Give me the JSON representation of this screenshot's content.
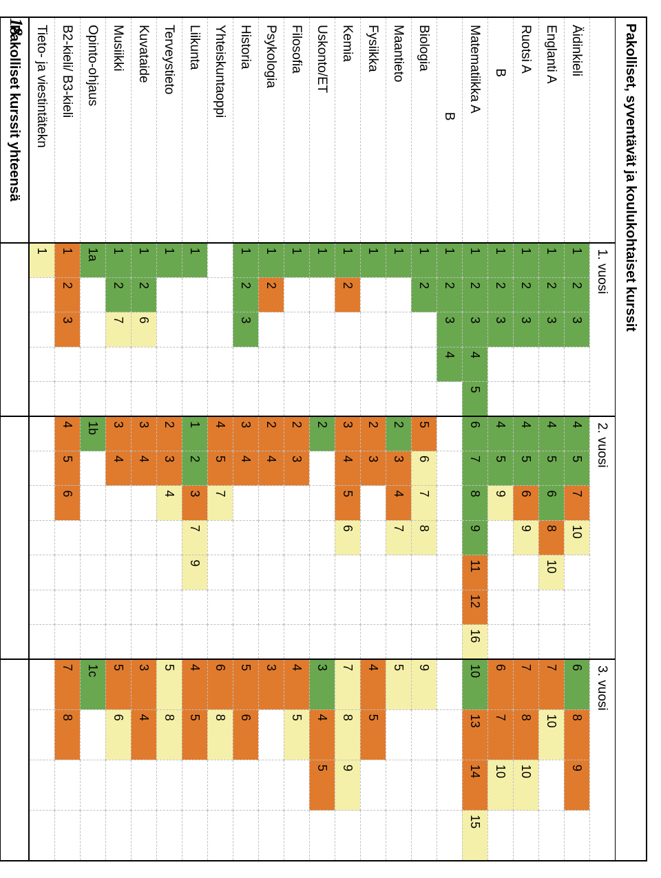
{
  "title": "Pakolliset, syventävät ja koulukohtaiset kurssit",
  "year_labels": [
    "1. vuosi",
    "2. vuosi",
    "3. vuosi"
  ],
  "footer_label": "Pakolliset kurssit yhteensä",
  "page_number": "18",
  "colors": {
    "green": "#6aa84f",
    "orange": "#e07b2e",
    "pale": "#f5f0a9",
    "grid": "#bfbfbf",
    "text": "#000000",
    "bg": "#ffffff"
  },
  "year_cols": [
    5,
    7,
    4
  ],
  "subjects": [
    {
      "name": "Äidinkieli",
      "y1": [
        [
          "1",
          "g"
        ],
        [
          "2",
          "g"
        ],
        [
          "3",
          "g"
        ]
      ],
      "y2": [
        [
          "4",
          "g"
        ],
        [
          "5",
          "g"
        ],
        [
          "7",
          "o"
        ],
        [
          "10",
          "y"
        ]
      ],
      "y3": [
        [
          "6",
          "g"
        ],
        [
          "8",
          "o"
        ],
        [
          "9",
          "o"
        ]
      ]
    },
    {
      "name": "Englanti A",
      "y1": [
        [
          "1",
          "g"
        ],
        [
          "2",
          "g"
        ],
        [
          "3",
          "g"
        ]
      ],
      "y2": [
        [
          "4",
          "g"
        ],
        [
          "5",
          "g"
        ],
        [
          "6",
          "g"
        ],
        [
          "8",
          "o"
        ],
        [
          "10",
          "y"
        ]
      ],
      "y3": [
        [
          "7",
          "o"
        ],
        [
          "10",
          "y"
        ]
      ]
    },
    {
      "name": "Ruotsi A",
      "y1": [
        [
          "1",
          "g"
        ],
        [
          "2",
          "g"
        ],
        [
          "3",
          "g"
        ]
      ],
      "y2": [
        [
          "4",
          "g"
        ],
        [
          "5",
          "g"
        ],
        [
          "6",
          "o"
        ],
        [
          "9",
          "y"
        ]
      ],
      "y3": [
        [
          "7",
          "o"
        ],
        [
          "8",
          "o"
        ],
        [
          "10",
          "y"
        ]
      ]
    },
    {
      "name": "            B",
      "y1": [
        [
          "1",
          "g"
        ],
        [
          "2",
          "g"
        ],
        [
          "3",
          "g"
        ]
      ],
      "y2": [
        [
          "4",
          "g"
        ],
        [
          "5",
          "g"
        ],
        [
          "9",
          "y"
        ]
      ],
      "y3": [
        [
          "6",
          "o"
        ],
        [
          "7",
          "o"
        ],
        [
          "10",
          "y"
        ]
      ]
    },
    {
      "name": "Matematiikka A",
      "y1": [
        [
          "1",
          "g"
        ],
        [
          "2",
          "g"
        ],
        [
          "3",
          "g"
        ],
        [
          "4",
          "g"
        ],
        [
          "5",
          "g"
        ]
      ],
      "y2": [
        [
          "6",
          "g"
        ],
        [
          "7",
          "g"
        ],
        [
          "8",
          "g"
        ],
        [
          "9",
          "g"
        ],
        [
          "11",
          "o"
        ],
        [
          "12",
          "o"
        ],
        [
          "16",
          "y"
        ]
      ],
      "y3": [
        [
          "10",
          "g"
        ],
        [
          "13",
          "o"
        ],
        [
          "14",
          "o"
        ],
        [
          "15",
          "y"
        ]
      ]
    },
    {
      "name": "                        B",
      "y1": [
        [
          "1",
          "g"
        ],
        [
          "2",
          "g"
        ],
        [
          "3",
          "g"
        ],
        [
          "4",
          "g"
        ]
      ],
      "y2": [],
      "y3": []
    },
    {
      "name": "Biologia",
      "y1": [
        [
          "1",
          "g"
        ],
        [
          "2",
          "g"
        ]
      ],
      "y2": [
        [
          "5",
          "o"
        ],
        [
          "6",
          "y"
        ],
        [
          "7",
          "y"
        ],
        [
          "8",
          "y"
        ]
      ],
      "y3": [
        [
          "9",
          "y"
        ]
      ]
    },
    {
      "name": "Maantieto",
      "y1": [
        [
          "1",
          "g"
        ]
      ],
      "y2": [
        [
          "2",
          "g"
        ],
        [
          "3",
          "o"
        ],
        [
          "4",
          "o"
        ],
        [
          "7",
          "y"
        ]
      ],
      "y3": [
        [
          "5",
          "y"
        ]
      ]
    },
    {
      "name": "Fysiikka",
      "y1": [
        [
          "1",
          "g"
        ]
      ],
      "y2": [
        [
          "2",
          "o"
        ],
        [
          "3",
          "o"
        ]
      ],
      "y3": [
        [
          "4",
          "o"
        ],
        [
          "5",
          "o"
        ]
      ]
    },
    {
      "name": "Kemia",
      "y1": [
        [
          "1",
          "g"
        ],
        [
          "2",
          "o"
        ]
      ],
      "y2": [
        [
          "3",
          "o"
        ],
        [
          "4",
          "o"
        ],
        [
          "5",
          "o"
        ],
        [
          "6",
          "y"
        ]
      ],
      "y3": [
        [
          "7",
          "y"
        ],
        [
          "8",
          "y"
        ],
        [
          "9",
          "y"
        ]
      ]
    },
    {
      "name": "Uskonto/ET",
      "y1": [
        [
          "1",
          "g"
        ]
      ],
      "y2": [
        [
          "2",
          "g"
        ]
      ],
      "y3": [
        [
          "3",
          "g"
        ],
        [
          "4",
          "o"
        ],
        [
          "5",
          "o"
        ]
      ]
    },
    {
      "name": "Filosofia",
      "y1": [
        [
          "1",
          "g"
        ]
      ],
      "y2": [
        [
          "2",
          "o"
        ],
        [
          "3",
          "o"
        ]
      ],
      "y3": [
        [
          "4",
          "o"
        ],
        [
          "5",
          "y"
        ]
      ]
    },
    {
      "name": "Psykologia",
      "y1": [
        [
          "1",
          "g"
        ],
        [
          "2",
          "o"
        ]
      ],
      "y2": [
        [
          "2",
          "o"
        ],
        [
          "4",
          "o"
        ]
      ],
      "y3": [
        [
          "3",
          "o"
        ]
      ]
    },
    {
      "name": "Historia",
      "y1": [
        [
          "1",
          "g"
        ],
        [
          "2",
          "g"
        ],
        [
          "3",
          "g"
        ]
      ],
      "y2": [
        [
          "3",
          "o"
        ],
        [
          "4",
          "o"
        ]
      ],
      "y3": [
        [
          "5",
          "o"
        ],
        [
          "6",
          "o"
        ]
      ]
    },
    {
      "name": "Yhteiskuntaoppi",
      "y1": [],
      "y2": [
        [
          "4",
          "o"
        ],
        [
          "5",
          "o"
        ],
        [
          "7",
          "y"
        ]
      ],
      "y3": [
        [
          "6",
          "o"
        ],
        [
          "8",
          "y"
        ]
      ]
    },
    {
      "name": "Liikunta",
      "y1": [
        [
          "1",
          "g"
        ]
      ],
      "y2": [
        [
          "1",
          "g"
        ],
        [
          "2",
          "g"
        ],
        [
          "3",
          "o"
        ],
        [
          "7",
          "y"
        ],
        [
          "9",
          "y"
        ]
      ],
      "y3": [
        [
          "4",
          "o"
        ],
        [
          "5",
          "o"
        ]
      ]
    },
    {
      "name": "Terveystieto",
      "y1": [
        [
          "1",
          "g"
        ]
      ],
      "y2": [
        [
          "2",
          "o"
        ],
        [
          "3",
          "o"
        ],
        [
          "4",
          "y"
        ]
      ],
      "y3": [
        [
          "5",
          "y"
        ],
        [
          "8",
          "y"
        ]
      ]
    },
    {
      "name": "Kuvataide",
      "y1": [
        [
          "1",
          "g"
        ],
        [
          "2",
          "g"
        ],
        [
          "6",
          "y"
        ]
      ],
      "y2": [
        [
          "3",
          "o"
        ],
        [
          "4",
          "o"
        ]
      ],
      "y3": [
        [
          "3",
          "o"
        ],
        [
          "4",
          "o"
        ]
      ]
    },
    {
      "name": "Musiikki",
      "y1": [
        [
          "1",
          "g"
        ],
        [
          "2",
          "g"
        ],
        [
          "7",
          "y"
        ]
      ],
      "y2": [
        [
          "3",
          "o"
        ],
        [
          "4",
          "o"
        ]
      ],
      "y3": [
        [
          "5",
          "o"
        ],
        [
          "6",
          "y"
        ]
      ]
    },
    {
      "name": "Opinto-ohjaus",
      "y1": [
        [
          "1a",
          "g"
        ]
      ],
      "y2": [
        [
          "1b",
          "g"
        ]
      ],
      "y3": [
        [
          "1c",
          "g"
        ]
      ]
    },
    {
      "name": "B2-kieli/ B3-kieli",
      "y1": [
        [
          "1",
          "o"
        ],
        [
          "2",
          "o"
        ],
        [
          "3",
          "o"
        ]
      ],
      "y2": [
        [
          "4",
          "o"
        ],
        [
          "5",
          "o"
        ],
        [
          "6",
          "o"
        ]
      ],
      "y3": [
        [
          "7",
          "o"
        ],
        [
          "8",
          "o"
        ]
      ]
    },
    {
      "name": "Tieto- ja viestintätekn",
      "y1": [
        [
          "1",
          "y"
        ]
      ],
      "y2": [],
      "y3": []
    }
  ]
}
